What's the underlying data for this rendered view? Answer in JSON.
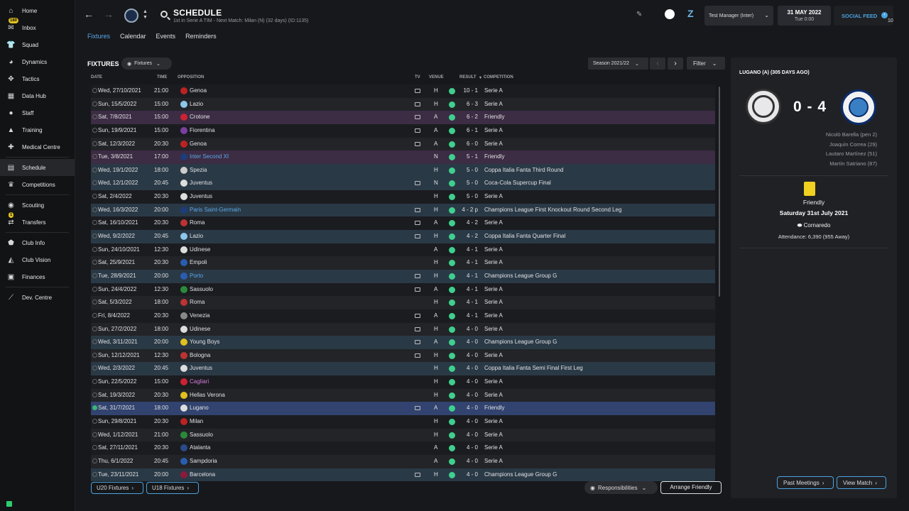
{
  "sidebar": {
    "items": [
      {
        "label": "Home",
        "icon": "home-icon",
        "glyph": "⌂"
      },
      {
        "label": "Inbox",
        "icon": "inbox-icon",
        "glyph": "✉",
        "badge": "180"
      },
      {
        "label": "Squad",
        "icon": "squad-icon",
        "glyph": "👕"
      },
      {
        "label": "Dynamics",
        "icon": "dynamics-icon",
        "glyph": "◕"
      },
      {
        "label": "Tactics",
        "icon": "tactics-icon",
        "glyph": "✥"
      },
      {
        "label": "Data Hub",
        "icon": "data-hub-icon",
        "glyph": "▦"
      },
      {
        "label": "Staff",
        "icon": "staff-icon",
        "glyph": "●"
      },
      {
        "label": "Training",
        "icon": "training-icon",
        "glyph": "▲"
      },
      {
        "label": "Medical Centre",
        "icon": "medical-icon",
        "glyph": "✚"
      },
      {
        "label": "Schedule",
        "icon": "schedule-icon",
        "glyph": "▤"
      },
      {
        "label": "Competitions",
        "icon": "trophy-icon",
        "glyph": "♛"
      },
      {
        "label": "Scouting",
        "icon": "scouting-icon",
        "glyph": "◉"
      },
      {
        "label": "Transfers",
        "icon": "transfers-icon",
        "glyph": "⇄",
        "badge": "1"
      },
      {
        "label": "Club Info",
        "icon": "club-info-icon",
        "glyph": "⬟"
      },
      {
        "label": "Club Vision",
        "icon": "club-vision-icon",
        "glyph": "◭"
      },
      {
        "label": "Finances",
        "icon": "finances-icon",
        "glyph": "▣"
      },
      {
        "label": "Dev. Centre",
        "icon": "dev-centre-icon",
        "glyph": "⟋"
      }
    ]
  },
  "header": {
    "title": "SCHEDULE",
    "subtitle": "1st in Serie A TIM - Next Match: Milan (N) (32 days) (ID:1135)",
    "manager": "Test Manager (Inter)",
    "date": "31 MAY 2022",
    "time": "Tue 0:00",
    "social_feed": "SOCIAL FEED",
    "social_count": "10"
  },
  "tabs": [
    "Fixtures",
    "Calendar",
    "Events",
    "Reminders"
  ],
  "fixtures": {
    "title": "FIXTURES",
    "view_dropdown": "Fixtures",
    "season": "Season 2021/22",
    "filter": "Filter",
    "columns": {
      "date": "DATE",
      "time": "TIME",
      "opposition": "OPPOSITION",
      "tv": "TV",
      "venue": "VENUE",
      "result": "RESULT",
      "competition": "COMPETITION"
    },
    "rows": [
      {
        "date": "Wed, 27/10/2021",
        "time": "21:00",
        "opp": "Genoa",
        "tv": true,
        "venue": "H",
        "result": "10 - 1",
        "comp": "Serie A",
        "style": "c0",
        "crest": "#b22"
      },
      {
        "date": "Sun, 15/5/2022",
        "time": "15:00",
        "opp": "Lazio",
        "tv": true,
        "venue": "H",
        "result": "6 - 3",
        "comp": "Serie A",
        "style": "c1",
        "crest": "#8cc8ea"
      },
      {
        "date": "Sat, 7/8/2021",
        "time": "15:00",
        "opp": "Crotone",
        "tv": true,
        "venue": "A",
        "result": "6 - 2",
        "comp": "Friendly",
        "style": "friendly",
        "crest": "#c23"
      },
      {
        "date": "Sun, 19/9/2021",
        "time": "15:00",
        "opp": "Fiorentina",
        "tv": true,
        "venue": "A",
        "result": "6 - 1",
        "comp": "Serie A",
        "style": "c0",
        "crest": "#7a3fa0"
      },
      {
        "date": "Sat, 12/3/2022",
        "time": "20:30",
        "opp": "Genoa",
        "tv": true,
        "venue": "A",
        "result": "6 - 0",
        "comp": "Serie A",
        "style": "c1",
        "crest": "#b22"
      },
      {
        "date": "Tue, 3/8/2021",
        "time": "17:00",
        "opp": "Inter Second XI",
        "tv": false,
        "venue": "N",
        "result": "5 - 1",
        "comp": "Friendly",
        "style": "friendly",
        "crest": "#1c3d7a",
        "link": "link"
      },
      {
        "date": "Wed, 19/1/2022",
        "time": "18:00",
        "opp": "Spezia",
        "tv": false,
        "venue": "H",
        "result": "5 - 0",
        "comp": "Coppa Italia Fanta Third Round",
        "style": "cup",
        "crest": "#ccc"
      },
      {
        "date": "Wed, 12/1/2022",
        "time": "20:45",
        "opp": "Juventus",
        "tv": true,
        "venue": "N",
        "result": "5 - 0",
        "comp": "Coca-Cola Supercup Final",
        "style": "cup",
        "crest": "#ddd"
      },
      {
        "date": "Sat, 2/4/2022",
        "time": "20:30",
        "opp": "Juventus",
        "tv": false,
        "venue": "H",
        "result": "5 - 0",
        "comp": "Serie A",
        "style": "c0",
        "crest": "#ddd"
      },
      {
        "date": "Wed, 16/3/2022",
        "time": "20:00",
        "opp": "Paris Saint-Germain",
        "tv": true,
        "venue": "H",
        "result": "4 - 2 p",
        "comp": "Champions League First Knockout Round Second Leg",
        "style": "cup",
        "crest": "#1c3d7a",
        "link": "link"
      },
      {
        "date": "Sat, 16/10/2021",
        "time": "20:30",
        "opp": "Roma",
        "tv": true,
        "venue": "A",
        "result": "4 - 2",
        "comp": "Serie A",
        "style": "c0",
        "crest": "#b33"
      },
      {
        "date": "Wed, 9/2/2022",
        "time": "20:45",
        "opp": "Lazio",
        "tv": true,
        "venue": "H",
        "result": "4 - 2",
        "comp": "Coppa Italia Fanta Quarter Final",
        "style": "cup",
        "crest": "#8cc8ea"
      },
      {
        "date": "Sun, 24/10/2021",
        "time": "12:30",
        "opp": "Udinese",
        "tv": false,
        "venue": "A",
        "result": "4 - 1",
        "comp": "Serie A",
        "style": "c0",
        "crest": "#ddd"
      },
      {
        "date": "Sat, 25/9/2021",
        "time": "20:30",
        "opp": "Empoli",
        "tv": false,
        "venue": "H",
        "result": "4 - 1",
        "comp": "Serie A",
        "style": "c1",
        "crest": "#2a5db0"
      },
      {
        "date": "Tue, 28/9/2021",
        "time": "20:00",
        "opp": "Porto",
        "tv": true,
        "venue": "H",
        "result": "4 - 1",
        "comp": "Champions League Group G",
        "style": "cup",
        "crest": "#2a5db0",
        "link": "link"
      },
      {
        "date": "Sun, 24/4/2022",
        "time": "12:30",
        "opp": "Sassuolo",
        "tv": true,
        "venue": "A",
        "result": "4 - 1",
        "comp": "Serie A",
        "style": "c0",
        "crest": "#2a8a3a"
      },
      {
        "date": "Sat, 5/3/2022",
        "time": "18:00",
        "opp": "Roma",
        "tv": false,
        "venue": "H",
        "result": "4 - 1",
        "comp": "Serie A",
        "style": "c1",
        "crest": "#b33"
      },
      {
        "date": "Fri, 8/4/2022",
        "time": "20:30",
        "opp": "Venezia",
        "tv": true,
        "venue": "A",
        "result": "4 - 1",
        "comp": "Serie A",
        "style": "c0",
        "crest": "#888"
      },
      {
        "date": "Sun, 27/2/2022",
        "time": "18:00",
        "opp": "Udinese",
        "tv": true,
        "venue": "H",
        "result": "4 - 0",
        "comp": "Serie A",
        "style": "c1",
        "crest": "#ddd"
      },
      {
        "date": "Wed, 3/11/2021",
        "time": "20:00",
        "opp": "Young Boys",
        "tv": true,
        "venue": "A",
        "result": "4 - 0",
        "comp": "Champions League Group G",
        "style": "cup",
        "crest": "#e0c020"
      },
      {
        "date": "Sun, 12/12/2021",
        "time": "12:30",
        "opp": "Bologna",
        "tv": true,
        "venue": "H",
        "result": "4 - 0",
        "comp": "Serie A",
        "style": "c1",
        "crest": "#b33"
      },
      {
        "date": "Wed, 2/3/2022",
        "time": "20:45",
        "opp": "Juventus",
        "tv": false,
        "venue": "H",
        "result": "4 - 0",
        "comp": "Coppa Italia Fanta Semi Final First Leg",
        "style": "cup",
        "crest": "#ddd"
      },
      {
        "date": "Sun, 22/5/2022",
        "time": "15:00",
        "opp": "Cagliari",
        "tv": false,
        "venue": "H",
        "result": "4 - 0",
        "comp": "Serie A",
        "style": "c0",
        "crest": "#c23",
        "link": "pink"
      },
      {
        "date": "Sat, 19/3/2022",
        "time": "20:30",
        "opp": "Hellas Verona",
        "tv": false,
        "venue": "H",
        "result": "4 - 0",
        "comp": "Serie A",
        "style": "c1",
        "crest": "#e0c020"
      },
      {
        "date": "Sat, 31/7/2021",
        "time": "18:00",
        "opp": "Lugano",
        "tv": true,
        "venue": "A",
        "result": "4 - 0",
        "comp": "Friendly",
        "style": "sel",
        "crest": "#ddd",
        "checked": true
      },
      {
        "date": "Sun, 29/8/2021",
        "time": "20:30",
        "opp": "Milan",
        "tv": false,
        "venue": "H",
        "result": "4 - 0",
        "comp": "Serie A",
        "style": "c0",
        "crest": "#b22"
      },
      {
        "date": "Wed, 1/12/2021",
        "time": "21:00",
        "opp": "Sassuolo",
        "tv": false,
        "venue": "H",
        "result": "4 - 0",
        "comp": "Serie A",
        "style": "c1",
        "crest": "#2a8a3a"
      },
      {
        "date": "Sat, 27/11/2021",
        "time": "20:30",
        "opp": "Atalanta",
        "tv": false,
        "venue": "A",
        "result": "4 - 0",
        "comp": "Serie A",
        "style": "c0",
        "crest": "#2a4a8a"
      },
      {
        "date": "Thu, 6/1/2022",
        "time": "20:45",
        "opp": "Sampdoria",
        "tv": false,
        "venue": "A",
        "result": "4 - 0",
        "comp": "Serie A",
        "style": "c1",
        "crest": "#2a5db0"
      },
      {
        "date": "Tue, 23/11/2021",
        "time": "20:00",
        "opp": "Barcelona",
        "tv": true,
        "venue": "H",
        "result": "4 - 0",
        "comp": "Champions League Group G",
        "style": "cup",
        "crest": "#8a1a3a"
      }
    ],
    "u20": "U20 Fixtures",
    "u18": "U18 Fixtures",
    "responsibilities": "Responsibilities",
    "arrange": "Arrange Friendly"
  },
  "match": {
    "title": "LUGANO (A) (305 DAYS AGO)",
    "score": "0 - 4",
    "scorers": [
      "Nicolò Barella (pen 2)",
      "Joaquín Correa (29)",
      "Lautaro Martínez (51)",
      "Martín Satriano (87)"
    ],
    "competition": "Friendly",
    "date": "Saturday 31st July 2021",
    "venue": "Cornaredo",
    "attendance": "Attendance: 6,390 (955 Away)",
    "past_meetings": "Past Meetings",
    "view_match": "View Match"
  },
  "colors": {
    "accent": "#4aa3e0",
    "win_dot": "#3fcf8e",
    "selected_row": "#31436e",
    "friendly_row": "#3c2c44",
    "cup_row": "#2a3946"
  }
}
